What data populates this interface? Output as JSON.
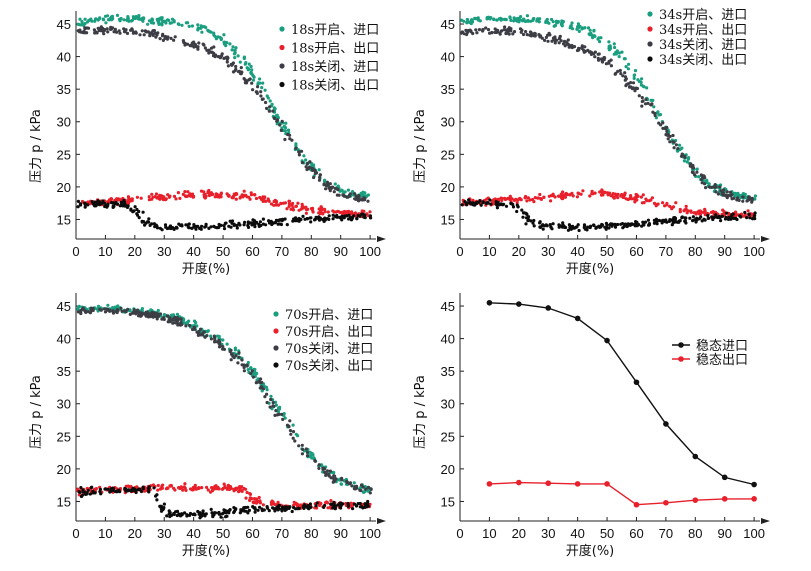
{
  "chart_data": [
    {
      "type": "scatter",
      "title": "",
      "xlabel": "开度(%)",
      "ylabel": "压力 p / kPa",
      "xlim": [
        0,
        102
      ],
      "ylim": [
        12,
        47
      ],
      "xticks": [
        0,
        10,
        20,
        30,
        40,
        50,
        60,
        70,
        80,
        90,
        100
      ],
      "yticks": [
        15,
        20,
        25,
        30,
        35,
        40,
        45
      ],
      "legend_position": "top-right",
      "series": [
        {
          "name": "18s开启、进口",
          "color": "#1a9e7f",
          "x": [
            0,
            5,
            10,
            15,
            20,
            25,
            30,
            35,
            40,
            45,
            50,
            55,
            60,
            65,
            70,
            75,
            80,
            85,
            90,
            95,
            100
          ],
          "y": [
            45.2,
            45.5,
            45.8,
            45.8,
            45.8,
            45.6,
            45.4,
            45.2,
            44.8,
            44.0,
            42.5,
            40.5,
            37.5,
            33.5,
            29.5,
            26.0,
            23.0,
            20.8,
            19.5,
            18.8,
            18.5
          ]
        },
        {
          "name": "18s开启、出口",
          "color": "#e8202b",
          "x": [
            0,
            5,
            10,
            15,
            20,
            25,
            30,
            35,
            40,
            45,
            50,
            55,
            60,
            65,
            70,
            75,
            80,
            85,
            90,
            95,
            100
          ],
          "y": [
            17.6,
            17.7,
            17.8,
            17.9,
            18.0,
            18.2,
            18.4,
            18.6,
            18.8,
            18.9,
            18.9,
            18.8,
            18.5,
            18.0,
            17.5,
            17.0,
            16.5,
            16.2,
            16.0,
            15.8,
            15.8
          ]
        },
        {
          "name": "18s关闭、进口",
          "color": "#3d3d45",
          "x": [
            0,
            5,
            10,
            15,
            20,
            25,
            30,
            35,
            40,
            45,
            50,
            55,
            60,
            65,
            70,
            75,
            80,
            85,
            90,
            95,
            100
          ],
          "y": [
            43.8,
            44.0,
            44.0,
            44.0,
            43.8,
            43.5,
            43.0,
            42.5,
            41.8,
            41.0,
            39.8,
            38.0,
            35.5,
            32.5,
            29.0,
            25.5,
            22.5,
            20.3,
            19.0,
            18.3,
            18.0
          ]
        },
        {
          "name": "18s关闭、出口",
          "color": "#0c0c0c",
          "x": [
            0,
            5,
            10,
            15,
            18,
            21,
            24,
            27,
            30,
            35,
            40,
            45,
            50,
            55,
            60,
            65,
            70,
            75,
            80,
            85,
            90,
            95,
            100
          ],
          "y": [
            17.4,
            17.4,
            17.4,
            17.4,
            17.2,
            16.0,
            14.5,
            14.0,
            13.8,
            13.8,
            13.8,
            13.9,
            14.0,
            14.1,
            14.3,
            14.5,
            14.7,
            14.9,
            15.1,
            15.2,
            15.3,
            15.4,
            15.5
          ]
        }
      ]
    },
    {
      "type": "scatter",
      "title": "",
      "xlabel": "开度(%)",
      "ylabel": "压力 p / kPa",
      "xlim": [
        0,
        102
      ],
      "ylim": [
        12,
        47
      ],
      "xticks": [
        0,
        10,
        20,
        30,
        40,
        50,
        60,
        70,
        80,
        90,
        100
      ],
      "yticks": [
        15,
        20,
        25,
        30,
        35,
        40,
        45
      ],
      "legend_position": "top-right",
      "series": [
        {
          "name": "34s开启、进口",
          "color": "#1a9e7f",
          "x": [
            0,
            5,
            10,
            15,
            20,
            25,
            30,
            35,
            40,
            45,
            50,
            55,
            60,
            65,
            70,
            75,
            80,
            85,
            90,
            95,
            100
          ],
          "y": [
            45.2,
            45.5,
            45.8,
            45.8,
            45.8,
            45.6,
            45.4,
            45.0,
            44.5,
            43.5,
            42.0,
            40.0,
            37.0,
            33.0,
            29.0,
            25.5,
            22.5,
            20.5,
            19.3,
            18.7,
            18.4
          ]
        },
        {
          "name": "34s开启、出口",
          "color": "#e8202b",
          "x": [
            0,
            5,
            10,
            15,
            20,
            25,
            30,
            35,
            40,
            45,
            50,
            55,
            60,
            65,
            70,
            75,
            80,
            85,
            90,
            95,
            100
          ],
          "y": [
            17.6,
            17.7,
            17.8,
            17.9,
            18.0,
            18.2,
            18.4,
            18.6,
            18.8,
            18.9,
            18.9,
            18.7,
            18.3,
            17.8,
            17.2,
            16.7,
            16.3,
            16.0,
            15.8,
            15.7,
            15.7
          ]
        },
        {
          "name": "34s关闭、进口",
          "color": "#3d3d45",
          "x": [
            0,
            5,
            10,
            15,
            20,
            25,
            30,
            35,
            40,
            45,
            50,
            55,
            60,
            65,
            70,
            75,
            80,
            85,
            90,
            95,
            100
          ],
          "y": [
            43.8,
            44.0,
            44.0,
            44.0,
            43.8,
            43.5,
            43.0,
            42.3,
            41.5,
            40.5,
            39.2,
            37.3,
            34.8,
            31.8,
            28.5,
            25.2,
            22.3,
            20.2,
            19.0,
            18.3,
            18.0
          ]
        },
        {
          "name": "34s关闭、出口",
          "color": "#0c0c0c",
          "x": [
            0,
            5,
            10,
            15,
            18,
            21,
            24,
            27,
            30,
            35,
            40,
            45,
            50,
            55,
            60,
            65,
            70,
            75,
            80,
            85,
            90,
            95,
            100
          ],
          "y": [
            17.4,
            17.4,
            17.4,
            17.4,
            17.2,
            16.2,
            14.6,
            14.0,
            13.8,
            13.8,
            13.8,
            13.9,
            14.0,
            14.1,
            14.3,
            14.5,
            14.7,
            14.9,
            15.1,
            15.2,
            15.3,
            15.4,
            15.5
          ]
        }
      ]
    },
    {
      "type": "scatter",
      "title": "",
      "xlabel": "开度(%)",
      "ylabel": "压力 p / kPa",
      "xlim": [
        0,
        102
      ],
      "ylim": [
        12,
        47
      ],
      "xticks": [
        0,
        10,
        20,
        30,
        40,
        50,
        60,
        70,
        80,
        90,
        100
      ],
      "yticks": [
        15,
        20,
        25,
        30,
        35,
        40,
        45
      ],
      "legend_position": "top-right",
      "series": [
        {
          "name": "70s开启、进口",
          "color": "#1a9e7f",
          "x": [
            0,
            5,
            10,
            15,
            20,
            25,
            30,
            35,
            40,
            45,
            50,
            55,
            60,
            65,
            70,
            75,
            80,
            85,
            90,
            95,
            100
          ],
          "y": [
            44.6,
            44.6,
            44.6,
            44.5,
            44.3,
            44.0,
            43.6,
            43.0,
            42.0,
            40.8,
            39.3,
            37.5,
            35.0,
            31.8,
            28.3,
            25.0,
            22.0,
            19.8,
            18.3,
            17.3,
            16.8
          ]
        },
        {
          "name": "70s开启、出口",
          "color": "#e8202b",
          "x": [
            0,
            5,
            10,
            15,
            20,
            25,
            30,
            35,
            40,
            45,
            50,
            55,
            57,
            60,
            65,
            70,
            75,
            80,
            85,
            90,
            95,
            100
          ],
          "y": [
            16.5,
            16.6,
            16.7,
            16.8,
            16.9,
            17.0,
            17.1,
            17.1,
            17.1,
            17.1,
            17.0,
            16.9,
            16.6,
            15.2,
            14.7,
            14.5,
            14.5,
            14.5,
            14.5,
            14.5,
            14.5,
            14.5
          ]
        },
        {
          "name": "70s关闭、进口",
          "color": "#3d3d45",
          "x": [
            0,
            5,
            10,
            15,
            20,
            25,
            30,
            35,
            40,
            45,
            50,
            55,
            60,
            65,
            70,
            75,
            80,
            85,
            90,
            95,
            100
          ],
          "y": [
            44.2,
            44.3,
            44.3,
            44.2,
            44.0,
            43.7,
            43.3,
            42.6,
            41.6,
            40.3,
            38.8,
            37.0,
            34.5,
            31.3,
            27.8,
            24.5,
            21.5,
            19.5,
            18.0,
            17.2,
            16.7
          ]
        },
        {
          "name": "70s关闭、出口",
          "color": "#0c0c0c",
          "x": [
            0,
            5,
            10,
            15,
            20,
            25,
            27,
            29,
            31,
            35,
            40,
            45,
            50,
            55,
            60,
            65,
            70,
            75,
            80,
            85,
            90,
            95,
            100
          ],
          "y": [
            16.4,
            16.5,
            16.6,
            16.7,
            16.8,
            16.9,
            16.0,
            14.3,
            13.2,
            13.0,
            13.0,
            13.1,
            13.3,
            13.5,
            13.7,
            13.9,
            14.0,
            14.1,
            14.2,
            14.3,
            14.4,
            14.5,
            14.5
          ]
        }
      ]
    },
    {
      "type": "line",
      "title": "",
      "xlabel": "开度(%)",
      "ylabel": "压力 p / kPa",
      "xlim": [
        0,
        102
      ],
      "ylim": [
        12,
        47
      ],
      "xticks": [
        0,
        10,
        20,
        30,
        40,
        50,
        60,
        70,
        80,
        90,
        100
      ],
      "yticks": [
        15,
        20,
        25,
        30,
        35,
        40,
        45
      ],
      "legend_position": "right",
      "x": [
        10,
        20,
        30,
        40,
        50,
        60,
        70,
        80,
        90,
        100
      ],
      "series": [
        {
          "name": "稳态进口",
          "color": "#111111",
          "values": [
            45.5,
            45.3,
            44.7,
            43.1,
            39.7,
            33.3,
            26.9,
            21.9,
            18.7,
            17.6
          ]
        },
        {
          "name": "稳态出口",
          "color": "#e8202b",
          "values": [
            17.7,
            17.9,
            17.8,
            17.7,
            17.7,
            14.5,
            14.8,
            15.2,
            15.4,
            15.4
          ]
        }
      ]
    }
  ]
}
